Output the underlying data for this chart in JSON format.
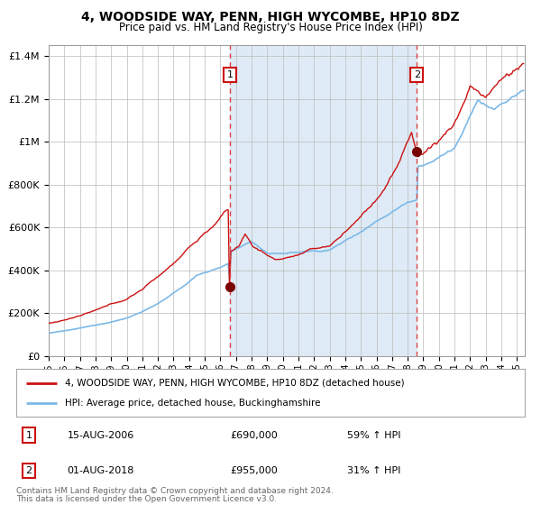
{
  "title": "4, WOODSIDE WAY, PENN, HIGH WYCOMBE, HP10 8DZ",
  "subtitle": "Price paid vs. HM Land Registry's House Price Index (HPI)",
  "legend_line1": "4, WOODSIDE WAY, PENN, HIGH WYCOMBE, HP10 8DZ (detached house)",
  "legend_line2": "HPI: Average price, detached house, Buckinghamshire",
  "footnote1": "Contains HM Land Registry data © Crown copyright and database right 2024.",
  "footnote2": "This data is licensed under the Open Government Licence v3.0.",
  "sale1_date": 2006.62,
  "sale1_price": 690000,
  "sale2_date": 2018.58,
  "sale2_price": 955000,
  "hpi_color": "#7cb9e8",
  "prop_color": "#cc1111",
  "sale_marker_color": "#7a0000",
  "dashed_line_color": "#dd4444",
  "shade_color": "#deeaf5",
  "background_color": "#ffffff",
  "grid_color": "#bbbbbb",
  "ylim": [
    0,
    1450000
  ],
  "xlim_start": 1995.0,
  "xlim_end": 2025.5,
  "yticks": [
    0,
    200000,
    400000,
    600000,
    800000,
    1000000,
    1200000,
    1400000
  ],
  "ytick_labels": [
    "£0",
    "£200K",
    "£400K",
    "£600K",
    "£800K",
    "£1M",
    "£1.2M",
    "£1.4M"
  ]
}
